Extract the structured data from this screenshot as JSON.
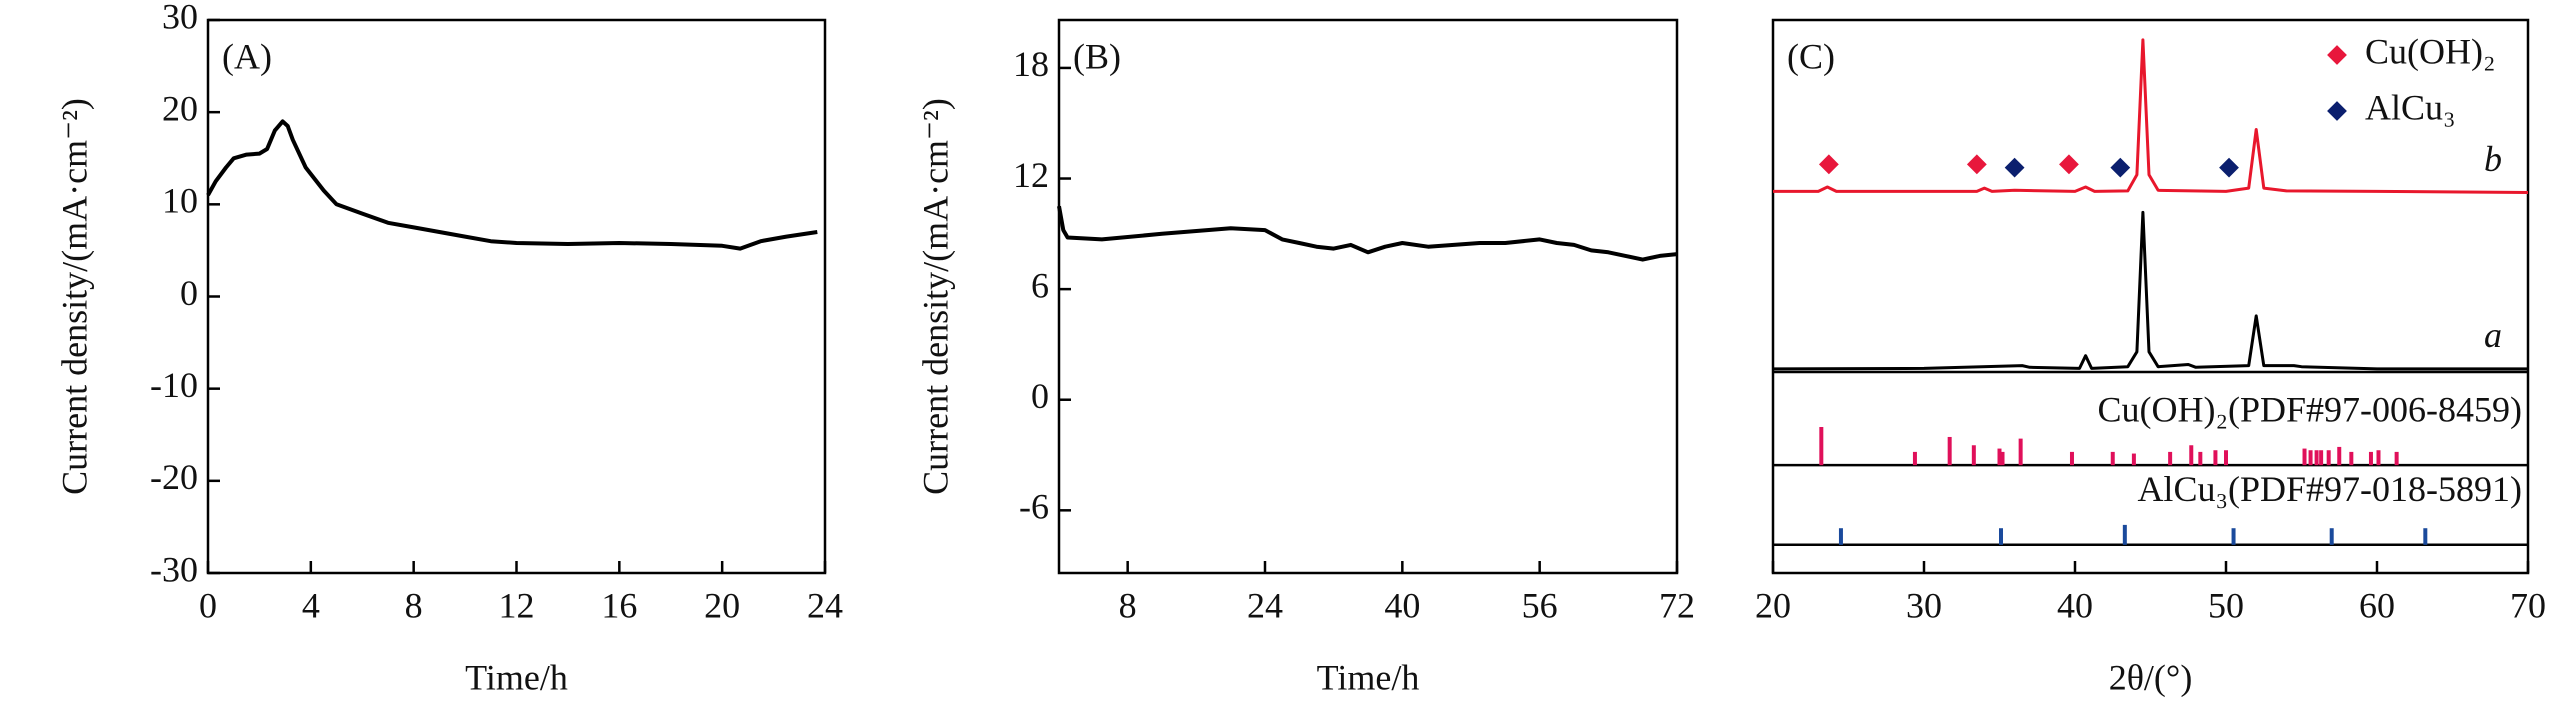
{
  "chart_data": [
    {
      "type": "line",
      "panel_label": "(A)",
      "xlabel": "Time/h",
      "ylabel": "Current density/(mA·cm⁻²)",
      "xlim": [
        0,
        24
      ],
      "xticks": [
        0,
        4,
        8,
        12,
        16,
        20,
        24
      ],
      "ylim": [
        -30,
        30
      ],
      "yticks": [
        -30,
        -20,
        -10,
        0,
        10,
        20,
        30
      ],
      "series": [
        {
          "color": "#000000",
          "x": [
            0,
            0.3,
            0.7,
            1,
            1.5,
            2,
            2.3,
            2.6,
            2.9,
            3.1,
            3.3,
            3.8,
            4.5,
            5,
            6,
            7,
            8,
            9,
            10,
            11,
            12,
            14,
            16,
            18,
            20,
            20.7,
            21.5,
            22.5,
            23.7
          ],
          "values": [
            11,
            12.5,
            14,
            15,
            15.4,
            15.5,
            16,
            18,
            19,
            18.5,
            17,
            14,
            11.5,
            10,
            9,
            8,
            7.5,
            7,
            6.5,
            6,
            5.8,
            5.7,
            5.8,
            5.7,
            5.5,
            5.2,
            6,
            6.5,
            7
          ]
        }
      ]
    },
    {
      "type": "line",
      "panel_label": "(B)",
      "xlabel": "Time/h",
      "ylabel": "Current density/(mA·cm⁻²)",
      "xlim": [
        0,
        72
      ],
      "xticks": [
        8,
        24,
        40,
        56,
        72
      ],
      "ylim": [
        -9.4,
        20.6
      ],
      "yticks": [
        -6,
        0,
        6,
        12,
        18
      ],
      "series": [
        {
          "color": "#000000",
          "x": [
            0,
            0.5,
            1,
            5,
            12,
            20,
            24,
            26,
            28,
            30,
            32,
            34,
            36,
            38,
            40,
            43,
            46,
            49,
            52,
            56,
            58,
            60,
            62,
            64,
            66,
            68,
            70,
            72
          ],
          "values": [
            10.5,
            9.2,
            8.8,
            8.7,
            9,
            9.3,
            9.2,
            8.7,
            8.5,
            8.3,
            8.2,
            8.4,
            8.0,
            8.3,
            8.5,
            8.3,
            8.4,
            8.5,
            8.5,
            8.7,
            8.5,
            8.4,
            8.1,
            8.0,
            7.8,
            7.6,
            7.8,
            7.9
          ]
        }
      ]
    },
    {
      "type": "xrd",
      "panel_label": "(C)",
      "xlabel": "2θ/(°)",
      "xlim": [
        20,
        70
      ],
      "xticks": [
        20,
        30,
        40,
        50,
        60,
        70
      ],
      "ylim": [
        0,
        100
      ],
      "series": [
        {
          "name": "b",
          "color": "#e8172c",
          "x": [
            20,
            23,
            23.6,
            24.2,
            30,
            33.5,
            34,
            34.5,
            36,
            40,
            40.7,
            41.3,
            43.5,
            44.1,
            44.5,
            44.9,
            45.5,
            50,
            51.5,
            52,
            52.5,
            54,
            60,
            70
          ],
          "values": [
            69,
            69,
            69.8,
            69,
            69,
            69,
            69.6,
            69,
            69.2,
            69,
            69.8,
            69,
            69.1,
            72,
            96.4,
            72,
            69.2,
            69,
            69.6,
            80.2,
            69.6,
            69.1,
            69,
            68.8
          ]
        },
        {
          "name": "a",
          "color": "#000000",
          "x": [
            20,
            30,
            36.5,
            37,
            40.3,
            40.7,
            41.1,
            43.5,
            44.1,
            44.5,
            44.9,
            45.5,
            47.5,
            48,
            51.5,
            52,
            52.5,
            54.5,
            55,
            60,
            70
          ],
          "values": [
            36.9,
            37,
            37.5,
            37.2,
            37,
            39.3,
            37,
            37.3,
            40,
            65.2,
            40,
            37.3,
            37.7,
            37.2,
            37.5,
            46.5,
            37.5,
            37.5,
            37.3,
            36.9,
            36.9
          ]
        }
      ],
      "marker_series": [
        {
          "name": "Cu(OH)₂",
          "color": "#e8173c",
          "x": [
            23.7,
            33.5,
            39.6
          ],
          "values": [
            73.9,
            73.9,
            73.9
          ]
        },
        {
          "name": "AlCu₃",
          "color": "#0b1f6e",
          "x": [
            36,
            43,
            50.2
          ],
          "values": [
            73.3,
            73.3,
            73.3
          ]
        }
      ],
      "references": [
        {
          "label": "Cu(OH)₂(PDF#97-006-8459)",
          "color": "#e0105a",
          "base": 19.5,
          "x": [
            23.2,
            29.4,
            31.7,
            33.3,
            35,
            35.2,
            36.4,
            39.8,
            42.5,
            43.9,
            46.3,
            47.7,
            48.3,
            49.3,
            50,
            55.2,
            55.6,
            56,
            56.3,
            56.8,
            57.5,
            58.3,
            59.6,
            60.1,
            61.3
          ],
          "values": [
            6.9,
            2.4,
            5.1,
            3.6,
            3,
            2.4,
            4.8,
            2.4,
            2.4,
            2.1,
            2.4,
            3.6,
            2.4,
            2.7,
            2.7,
            3,
            2.7,
            2.7,
            2.7,
            2.7,
            3.3,
            2.4,
            2.4,
            2.7,
            2.4
          ]
        },
        {
          "label": "AlCu₃(PDF#97-018-5891)",
          "color": "#1a4a9c",
          "base": 5.1,
          "x": [
            24.5,
            35.1,
            43.3,
            50.5,
            57,
            63.2
          ],
          "values": [
            3,
            3,
            3.6,
            3,
            3,
            3
          ]
        }
      ]
    }
  ]
}
